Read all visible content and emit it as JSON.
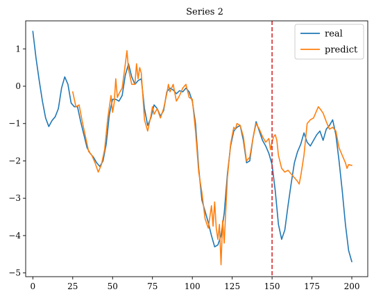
{
  "chart_data": {
    "type": "line",
    "title": "Series 2",
    "xlabel": "",
    "ylabel": "",
    "xlim": [
      -4.5,
      210
    ],
    "ylim": [
      -5.1,
      1.75
    ],
    "xticks": [
      0,
      25,
      50,
      75,
      100,
      125,
      150,
      175,
      200
    ],
    "yticks": [
      -5,
      -4,
      -3,
      -2,
      -1,
      0,
      1
    ],
    "grid": false,
    "legend": "top-right",
    "vline": {
      "x": 150,
      "color": "#d62728",
      "style": "dashed"
    },
    "series": [
      {
        "name": "real",
        "color": "#1f77b4",
        "points": [
          [
            0,
            1.47
          ],
          [
            2,
            0.75
          ],
          [
            4,
            0.15
          ],
          [
            6,
            -0.4
          ],
          [
            8,
            -0.85
          ],
          [
            10,
            -1.08
          ],
          [
            12,
            -0.92
          ],
          [
            14,
            -0.82
          ],
          [
            16,
            -0.6
          ],
          [
            18,
            -0.05
          ],
          [
            20,
            0.25
          ],
          [
            22,
            0.05
          ],
          [
            24,
            -0.45
          ],
          [
            26,
            -0.55
          ],
          [
            28,
            -0.55
          ],
          [
            30,
            -0.95
          ],
          [
            32,
            -1.3
          ],
          [
            34,
            -1.65
          ],
          [
            36,
            -1.8
          ],
          [
            38,
            -1.9
          ],
          [
            40,
            -2.05
          ],
          [
            42,
            -2.15
          ],
          [
            44,
            -2.0
          ],
          [
            46,
            -1.55
          ],
          [
            48,
            -0.75
          ],
          [
            50,
            -0.35
          ],
          [
            52,
            -0.35
          ],
          [
            54,
            -0.4
          ],
          [
            56,
            -0.25
          ],
          [
            58,
            0.3
          ],
          [
            60,
            0.6
          ],
          [
            62,
            0.25
          ],
          [
            64,
            0.05
          ],
          [
            66,
            0.15
          ],
          [
            68,
            0.2
          ],
          [
            70,
            -0.6
          ],
          [
            72,
            -1.05
          ],
          [
            74,
            -0.85
          ],
          [
            76,
            -0.5
          ],
          [
            78,
            -0.6
          ],
          [
            80,
            -0.8
          ],
          [
            82,
            -0.65
          ],
          [
            84,
            -0.15
          ],
          [
            86,
            -0.05
          ],
          [
            88,
            -0.1
          ],
          [
            90,
            -0.2
          ],
          [
            92,
            -0.12
          ],
          [
            94,
            -0.15
          ],
          [
            96,
            -0.05
          ],
          [
            98,
            -0.15
          ],
          [
            100,
            -0.4
          ],
          [
            102,
            -1.0
          ],
          [
            104,
            -2.2
          ],
          [
            106,
            -3.05
          ],
          [
            108,
            -3.35
          ],
          [
            110,
            -3.65
          ],
          [
            112,
            -4.0
          ],
          [
            114,
            -4.3
          ],
          [
            116,
            -4.25
          ],
          [
            118,
            -4.0
          ],
          [
            120,
            -3.4
          ],
          [
            122,
            -2.35
          ],
          [
            124,
            -1.6
          ],
          [
            126,
            -1.2
          ],
          [
            128,
            -1.1
          ],
          [
            130,
            -1.05
          ],
          [
            132,
            -1.45
          ],
          [
            134,
            -2.05
          ],
          [
            136,
            -2.0
          ],
          [
            138,
            -1.4
          ],
          [
            140,
            -0.95
          ],
          [
            142,
            -1.2
          ],
          [
            144,
            -1.45
          ],
          [
            146,
            -1.6
          ],
          [
            148,
            -1.8
          ],
          [
            150,
            -2.1
          ],
          [
            152,
            -2.8
          ],
          [
            154,
            -3.7
          ],
          [
            156,
            -4.1
          ],
          [
            158,
            -3.85
          ],
          [
            160,
            -3.2
          ],
          [
            162,
            -2.6
          ],
          [
            164,
            -2.05
          ],
          [
            166,
            -1.75
          ],
          [
            168,
            -1.55
          ],
          [
            170,
            -1.25
          ],
          [
            172,
            -1.5
          ],
          [
            174,
            -1.6
          ],
          [
            176,
            -1.45
          ],
          [
            178,
            -1.3
          ],
          [
            180,
            -1.2
          ],
          [
            182,
            -1.45
          ],
          [
            184,
            -1.15
          ],
          [
            186,
            -1.05
          ],
          [
            188,
            -0.9
          ],
          [
            190,
            -1.3
          ],
          [
            192,
            -2.0
          ],
          [
            194,
            -2.8
          ],
          [
            196,
            -3.7
          ],
          [
            198,
            -4.4
          ],
          [
            200,
            -4.7
          ]
        ]
      },
      {
        "name": "predict",
        "color": "#ff7f0e",
        "points": [
          [
            25,
            -0.15
          ],
          [
            27,
            -0.55
          ],
          [
            29,
            -0.5
          ],
          [
            31,
            -0.95
          ],
          [
            33,
            -1.35
          ],
          [
            35,
            -1.75
          ],
          [
            37,
            -1.85
          ],
          [
            39,
            -2.05
          ],
          [
            41,
            -2.3
          ],
          [
            43,
            -2.1
          ],
          [
            45,
            -1.7
          ],
          [
            47,
            -0.85
          ],
          [
            49,
            -0.25
          ],
          [
            50,
            -0.7
          ],
          [
            51,
            -0.45
          ],
          [
            52,
            0.2
          ],
          [
            53,
            -0.3
          ],
          [
            54,
            -0.2
          ],
          [
            56,
            -0.05
          ],
          [
            58,
            0.6
          ],
          [
            59,
            0.95
          ],
          [
            60,
            0.45
          ],
          [
            62,
            0.05
          ],
          [
            64,
            0.05
          ],
          [
            65,
            0.6
          ],
          [
            66,
            0.2
          ],
          [
            67,
            0.5
          ],
          [
            68,
            0.35
          ],
          [
            70,
            -0.9
          ],
          [
            72,
            -1.2
          ],
          [
            74,
            -0.8
          ],
          [
            75,
            -0.55
          ],
          [
            76,
            -0.75
          ],
          [
            78,
            -0.6
          ],
          [
            80,
            -0.85
          ],
          [
            82,
            -0.6
          ],
          [
            84,
            -0.2
          ],
          [
            85,
            0.05
          ],
          [
            86,
            -0.15
          ],
          [
            88,
            0.05
          ],
          [
            90,
            -0.4
          ],
          [
            92,
            -0.25
          ],
          [
            94,
            -0.05
          ],
          [
            96,
            0.05
          ],
          [
            98,
            -0.3
          ],
          [
            100,
            -0.35
          ],
          [
            102,
            -1.2
          ],
          [
            104,
            -2.3
          ],
          [
            106,
            -2.85
          ],
          [
            108,
            -3.55
          ],
          [
            110,
            -3.8
          ],
          [
            112,
            -3.2
          ],
          [
            113,
            -3.75
          ],
          [
            114,
            -3.1
          ],
          [
            115,
            -3.8
          ],
          [
            116,
            -4.1
          ],
          [
            117,
            -3.7
          ],
          [
            118,
            -4.78
          ],
          [
            119,
            -3.6
          ],
          [
            120,
            -4.2
          ],
          [
            121,
            -3.3
          ],
          [
            122,
            -2.45
          ],
          [
            124,
            -1.55
          ],
          [
            126,
            -1.1
          ],
          [
            127,
            -1.15
          ],
          [
            128,
            -1.0
          ],
          [
            130,
            -1.05
          ],
          [
            132,
            -1.35
          ],
          [
            134,
            -2.0
          ],
          [
            136,
            -1.9
          ],
          [
            138,
            -1.4
          ],
          [
            140,
            -1.0
          ],
          [
            142,
            -1.15
          ],
          [
            144,
            -1.35
          ],
          [
            146,
            -1.5
          ],
          [
            148,
            -1.4
          ],
          [
            149,
            -1.7
          ],
          [
            150,
            -1.5
          ],
          [
            151,
            -1.35
          ],
          [
            152,
            -1.3
          ],
          [
            153,
            -1.45
          ],
          [
            154,
            -1.85
          ],
          [
            156,
            -2.2
          ],
          [
            158,
            -2.3
          ],
          [
            160,
            -2.25
          ],
          [
            162,
            -2.35
          ],
          [
            164,
            -2.45
          ],
          [
            166,
            -2.55
          ],
          [
            167,
            -2.62
          ],
          [
            168,
            -2.4
          ],
          [
            170,
            -1.85
          ],
          [
            172,
            -1.0
          ],
          [
            174,
            -0.9
          ],
          [
            176,
            -0.85
          ],
          [
            178,
            -0.65
          ],
          [
            179,
            -0.55
          ],
          [
            180,
            -0.6
          ],
          [
            182,
            -0.72
          ],
          [
            184,
            -0.95
          ],
          [
            186,
            -1.15
          ],
          [
            188,
            -1.1
          ],
          [
            190,
            -1.2
          ],
          [
            192,
            -1.65
          ],
          [
            194,
            -1.85
          ],
          [
            196,
            -2.05
          ],
          [
            197,
            -2.2
          ],
          [
            198,
            -2.1
          ],
          [
            200,
            -2.12
          ]
        ]
      }
    ]
  }
}
